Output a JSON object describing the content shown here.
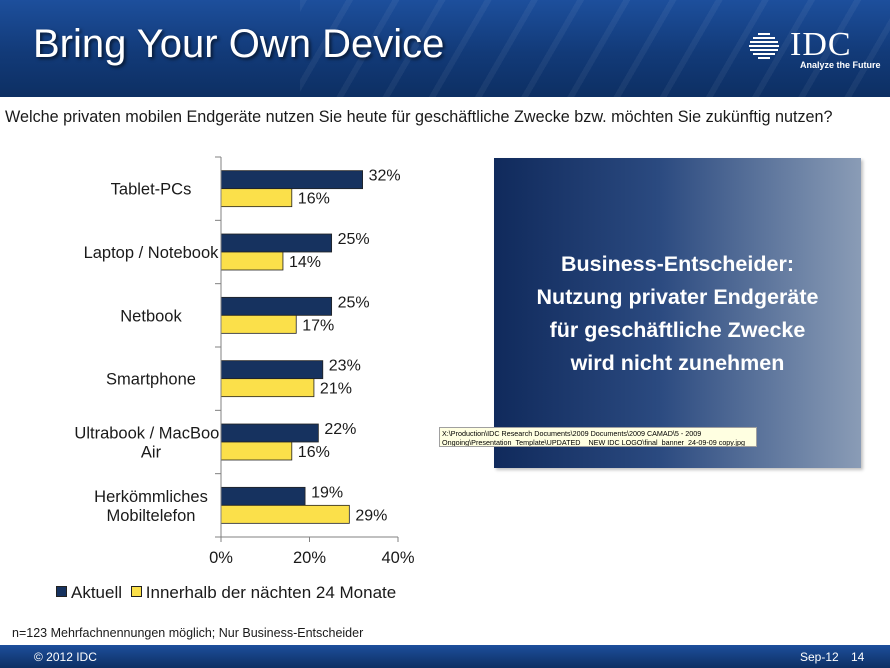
{
  "header": {
    "title": "Bring Your Own Device",
    "logo_text": "IDC",
    "logo_tagline": "Analyze the Future"
  },
  "question": "Welche privaten mobilen Endgeräte nutzen Sie heute für geschäftliche Zwecke bzw. möchten Sie zukünftig nutzen?",
  "chart_data": {
    "type": "bar",
    "orientation": "horizontal",
    "categories": [
      [
        "Tablet-PCs"
      ],
      [
        "Laptop / Notebook"
      ],
      [
        "Netbook"
      ],
      [
        "Smartphone"
      ],
      [
        "Ultrabook / MacBook",
        "Air"
      ],
      [
        "Herkömmliches",
        "Mobiltelefon"
      ]
    ],
    "series": [
      {
        "name": "Aktuell",
        "color": "#16325f",
        "values": [
          32,
          25,
          25,
          23,
          22,
          19
        ],
        "labels": [
          "32%",
          "25%",
          "25%",
          "23%",
          "22%",
          "19%"
        ]
      },
      {
        "name": "Innerhalb der nächten 24 Monate",
        "color": "#fbe04a",
        "values": [
          16,
          14,
          17,
          21,
          16,
          29
        ],
        "labels": [
          "16%",
          "14%",
          "17%",
          "21%",
          "16%",
          "29%"
        ]
      }
    ],
    "xlim": [
      0,
      40
    ],
    "xticks": [
      "0%",
      "20%",
      "40%"
    ],
    "grid": false,
    "legend_position": "bottom-left"
  },
  "callout": {
    "lines": [
      "Business-Entscheider:",
      "Nutzung privater Endgeräte",
      "für geschäftliche Zwecke",
      "wird nicht zunehmen"
    ]
  },
  "filepath_tooltip": {
    "line1": "X:\\Production\\IDC Research Documents\\2009 Documents\\2009 CAMAD\\5 - 2009",
    "line2": "Ongoing\\Presentation_Template\\UPDATED _ NEW IDC LOGO\\final_banner_24-09-09 copy.jpg"
  },
  "footnote": "n=123  Mehrfachnennungen möglich; Nur Business-Entscheider",
  "footer": {
    "copyright": "© 2012 IDC",
    "date": "Sep-12",
    "page": "14"
  }
}
